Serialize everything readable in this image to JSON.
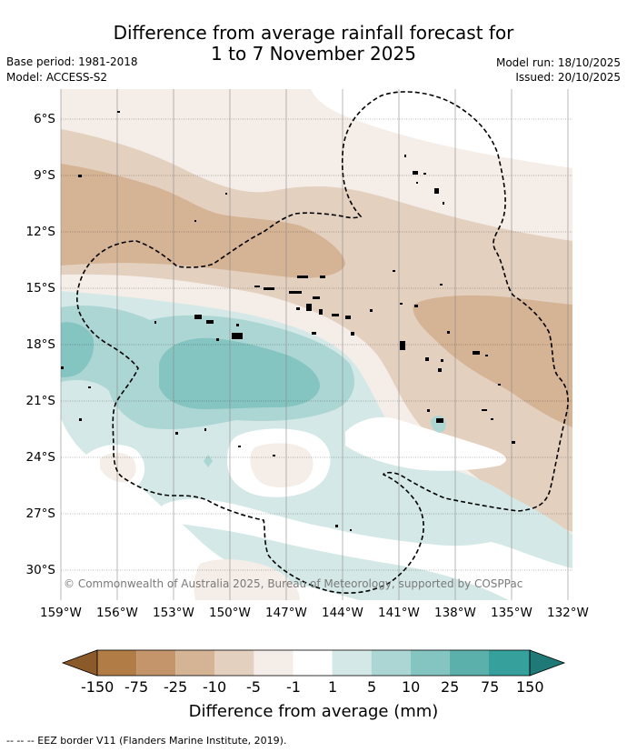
{
  "header": {
    "title_line1": "Difference from average rainfall forecast for",
    "title_line2": "1 to 7 November 2025",
    "base_period": "Base period: 1981-2018",
    "model": "Model: ACCESS-S2",
    "model_run": "Model run: 18/10/2025",
    "issued": "Issued: 20/10/2025"
  },
  "map": {
    "lat_labels": [
      "6°S",
      "9°S",
      "12°S",
      "15°S",
      "18°S",
      "21°S",
      "24°S",
      "27°S",
      "30°S"
    ],
    "lon_labels": [
      "159°W",
      "156°W",
      "153°W",
      "150°W",
      "147°W",
      "144°W",
      "141°W",
      "138°W",
      "135°W",
      "132°W"
    ],
    "copyright": "© Commonwealth of Australia 2025, Bureau of Meteorology, supported by COSPPac"
  },
  "colorbar": {
    "tick_labels": [
      "-150",
      "-75",
      "-25",
      "-10",
      "-5",
      "-1",
      "1",
      "5",
      "10",
      "25",
      "75",
      "150"
    ],
    "label": "Difference from average (mm)",
    "colors": [
      "#8b5a2b",
      "#b17c46",
      "#c4956b",
      "#d5b395",
      "#e4d0bf",
      "#f4ede8",
      "#ffffff",
      "#d4e9e7",
      "#acd6d4",
      "#84c4c1",
      "#5cb0ac",
      "#35a09c",
      "#1f7a77"
    ]
  },
  "footer": {
    "legend_line": "-- -- -- EEZ border V11 (Flanders Marine Institute, 2019)."
  }
}
